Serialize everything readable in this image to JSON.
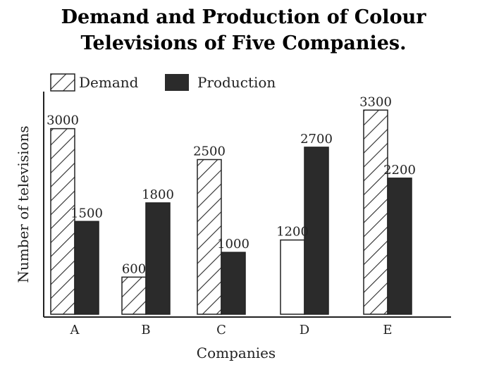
{
  "chart_data": {
    "type": "bar",
    "title_line1": "Demand and Production of Colour",
    "title_line2": "Televisions of Five Companies.",
    "xlabel": "Companies",
    "ylabel": "Number of televisions",
    "categories": [
      "A",
      "B",
      "C",
      "D",
      "E"
    ],
    "series": [
      {
        "name": "Demand",
        "values": [
          3000,
          600,
          2500,
          1200,
          3300
        ],
        "fill": "hatch"
      },
      {
        "name": "Production",
        "values": [
          1500,
          1800,
          1000,
          2700,
          2200
        ],
        "fill": "#2b2b2b"
      }
    ],
    "legend": "top-left",
    "grid": false
  }
}
